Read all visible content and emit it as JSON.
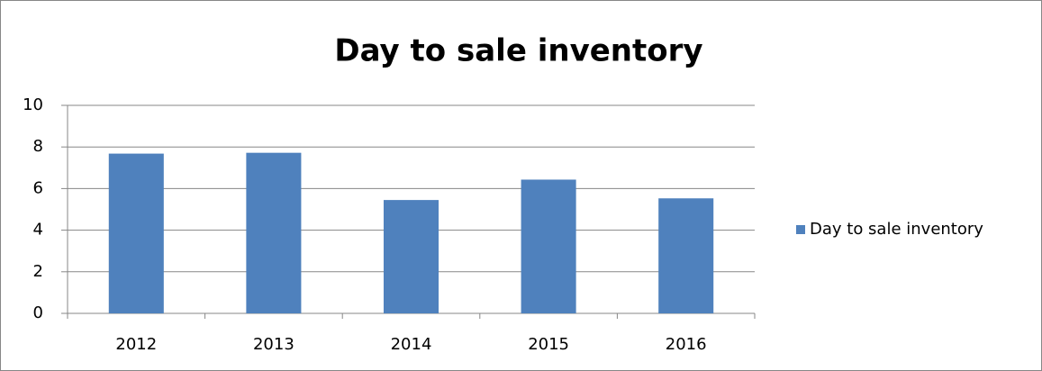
{
  "chart_data": {
    "type": "bar",
    "title": "Day to sale inventory",
    "categories": [
      "2012",
      "2013",
      "2014",
      "2015",
      "2016"
    ],
    "series": [
      {
        "name": "Day to sale inventory",
        "color": "#4f81bd",
        "values": [
          7.68,
          7.72,
          5.45,
          6.43,
          5.53
        ]
      }
    ],
    "ylim": [
      0,
      10
    ],
    "yticks": [
      0,
      2,
      4,
      6,
      8,
      10
    ],
    "grid": true,
    "legend": "right"
  }
}
